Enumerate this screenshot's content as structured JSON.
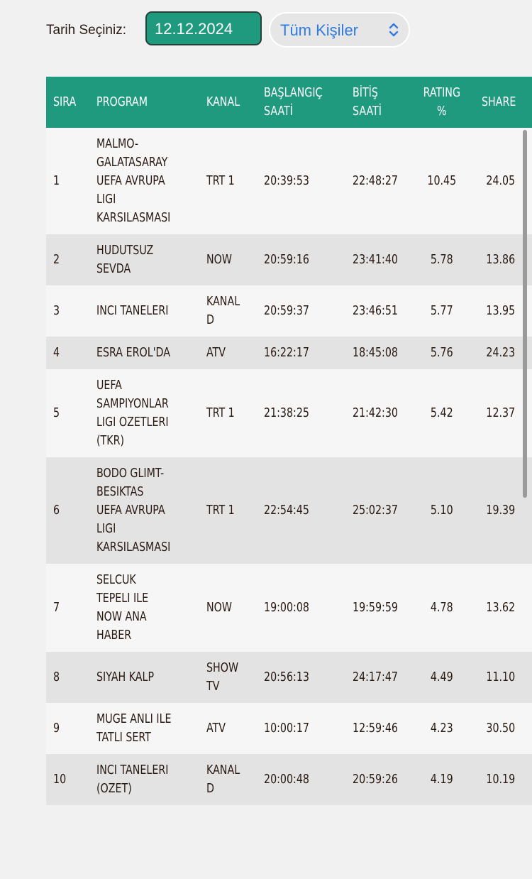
{
  "filters": {
    "date_label": "Tarih Seçiniz:",
    "date_value": "12.12.2024",
    "audience_value": "Tüm Kişiler"
  },
  "colors": {
    "accent": "#1f9a7e",
    "row_light": "#f6f6f6",
    "row_dark": "#e3e3e3",
    "link_blue": "#2f7be0"
  },
  "table": {
    "headers": {
      "rank": "SIRA",
      "program": "PROGRAM",
      "channel": "KANAL",
      "start": [
        "BAŞLANGIÇ",
        "SAATİ"
      ],
      "end": [
        "BİTİŞ",
        "SAATİ"
      ],
      "rating": [
        "RATING",
        "%"
      ],
      "share": "SHARE"
    },
    "rows": [
      {
        "rank": "1",
        "program": "MALMO-\nGALATASARAY\nUEFA AVRUPA\nLIGI\nKARSILASMASI",
        "channel": "TRT 1",
        "start": "20:39:53",
        "end": "22:48:27",
        "rating": "10.45",
        "share": "24.05"
      },
      {
        "rank": "2",
        "program": "HUDUTSUZ\nSEVDA",
        "channel": "NOW",
        "start": "20:59:16",
        "end": "23:41:40",
        "rating": "5.78",
        "share": "13.86"
      },
      {
        "rank": "3",
        "program": "INCI TANELERI",
        "channel": "KANAL\nD",
        "start": "20:59:37",
        "end": "23:46:51",
        "rating": "5.77",
        "share": "13.95"
      },
      {
        "rank": "4",
        "program": "ESRA EROL'DA",
        "channel": "ATV",
        "start": "16:22:17",
        "end": "18:45:08",
        "rating": "5.76",
        "share": "24.23"
      },
      {
        "rank": "5",
        "program": "UEFA\nSAMPIYONLAR\nLIGI OZETLERI\n(TKR)",
        "channel": "TRT 1",
        "start": "21:38:25",
        "end": "21:42:30",
        "rating": "5.42",
        "share": "12.37"
      },
      {
        "rank": "6",
        "program": "BODO GLIMT-\nBESIKTAS\nUEFA AVRUPA\nLIGI\nKARSILASMASI",
        "channel": "TRT 1",
        "start": "22:54:45",
        "end": "25:02:37",
        "rating": "5.10",
        "share": "19.39"
      },
      {
        "rank": "7",
        "program": "SELCUK\nTEPELI ILE\nNOW ANA\nHABER",
        "channel": "NOW",
        "start": "19:00:08",
        "end": "19:59:59",
        "rating": "4.78",
        "share": "13.62"
      },
      {
        "rank": "8",
        "program": "SIYAH KALP",
        "channel": "SHOW\nTV",
        "start": "20:56:13",
        "end": "24:17:47",
        "rating": "4.49",
        "share": "11.10"
      },
      {
        "rank": "9",
        "program": "MUGE ANLI ILE\nTATLI SERT",
        "channel": "ATV",
        "start": "10:00:17",
        "end": "12:59:46",
        "rating": "4.23",
        "share": "30.50"
      },
      {
        "rank": "10",
        "program": "INCI TANELERI\n(OZET)",
        "channel": "KANAL\nD",
        "start": "20:00:48",
        "end": "20:59:26",
        "rating": "4.19",
        "share": "10.19"
      }
    ]
  }
}
